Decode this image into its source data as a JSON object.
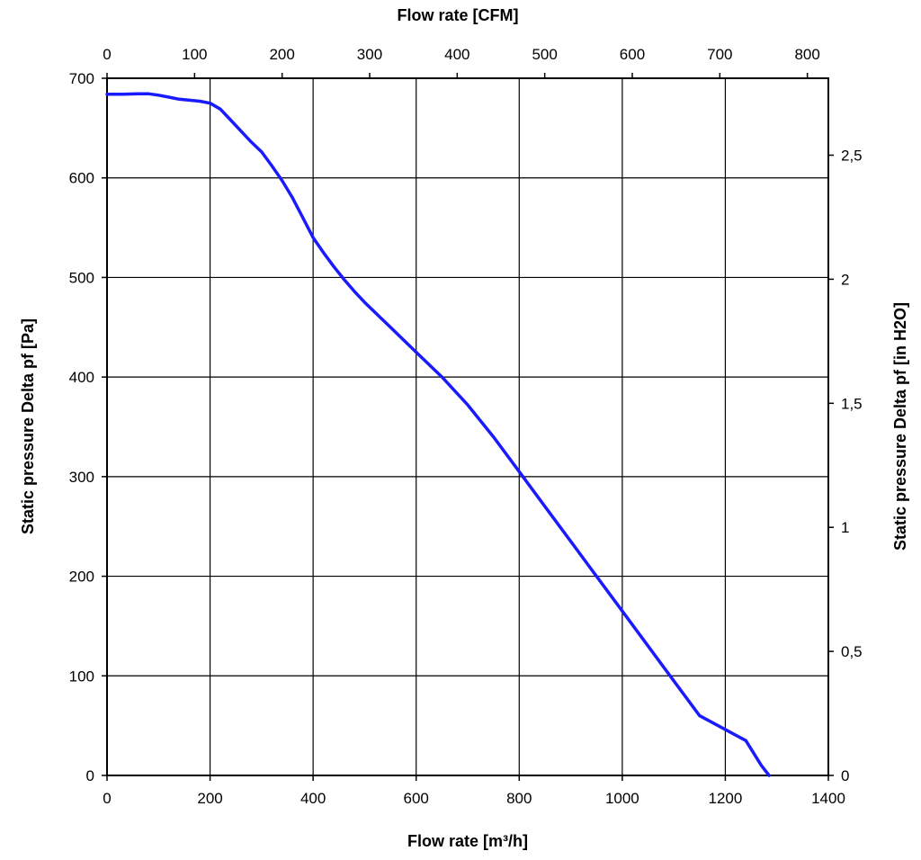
{
  "chart_data": {
    "type": "line",
    "title": "",
    "xlabel": "Flow rate [m³/h]",
    "x2label": "Flow rate [CFM]",
    "ylabel": "Static pressure Delta pf [Pa]",
    "y2label": "Static pressure Delta pf [in H2O]",
    "xlim": [
      0,
      1400
    ],
    "ylim": [
      0,
      700
    ],
    "x2lim": [
      0,
      824
    ],
    "y2lim": [
      0,
      2.81
    ],
    "x_ticks": [
      0,
      200,
      400,
      600,
      800,
      1000,
      1200,
      1400
    ],
    "y_ticks": [
      0,
      100,
      200,
      300,
      400,
      500,
      600,
      700
    ],
    "x2_ticks": [
      0,
      100,
      200,
      300,
      400,
      500,
      600,
      700,
      800
    ],
    "y2_ticks": [
      0,
      0.5,
      1,
      1.5,
      2,
      2.5
    ],
    "x_tick_labels": [
      "0",
      "200",
      "400",
      "600",
      "800",
      "1000",
      "1200",
      "1400"
    ],
    "y_tick_labels": [
      "0",
      "100",
      "200",
      "300",
      "400",
      "500",
      "600",
      "700"
    ],
    "x2_tick_labels": [
      "0",
      "100",
      "200",
      "300",
      "400",
      "500",
      "600",
      "700",
      "800"
    ],
    "y2_tick_labels": [
      "0",
      "0,5",
      "1",
      "1,5",
      "2",
      "2,5"
    ],
    "grid": true,
    "line_color": "#1a1aff",
    "series": [
      {
        "x": [
          0,
          30,
          60,
          80,
          100,
          120,
          140,
          160,
          180,
          200,
          220,
          240,
          260,
          280,
          300,
          320,
          340,
          360,
          380,
          400,
          420,
          440,
          460,
          480,
          500,
          550,
          600,
          650,
          700,
          750,
          800,
          850,
          900,
          950,
          1000,
          1050,
          1100,
          1150,
          1200,
          1240,
          1270,
          1285
        ],
        "y": [
          684,
          684,
          684.5,
          684.5,
          683,
          681,
          679,
          678,
          677,
          675,
          669,
          658,
          647,
          636,
          626,
          612,
          597,
          580,
          560,
          540,
          525,
          511,
          498,
          486,
          475,
          450,
          425,
          400,
          372,
          340,
          305,
          270,
          235,
          200,
          165,
          130,
          95,
          60,
          78,
          35,
          10,
          0
        ]
      }
    ]
  }
}
